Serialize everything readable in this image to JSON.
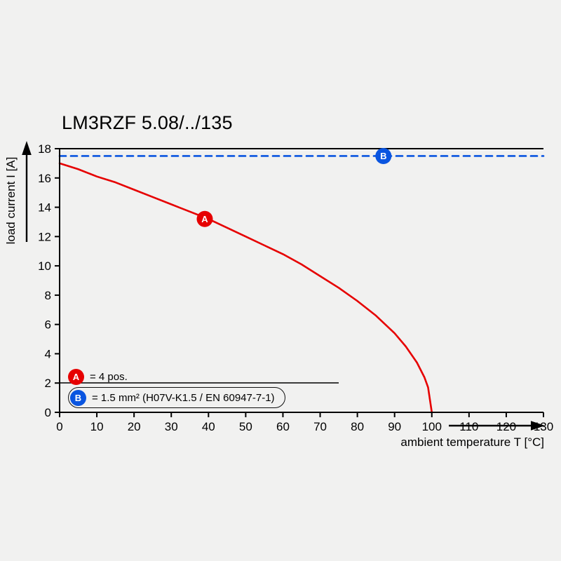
{
  "page": {
    "background": "#f1f1f0"
  },
  "chart": {
    "title": "LM3RZF 5.08/../135"
  },
  "chart_data": {
    "type": "line",
    "title": "LM3RZF 5.08/../135",
    "xlabel": "ambient temperature T [°C]",
    "ylabel": "load current I [A]",
    "xlim": [
      0,
      130
    ],
    "ylim": [
      0,
      18
    ],
    "xticks": [
      0,
      10,
      20,
      30,
      40,
      50,
      60,
      70,
      80,
      90,
      100,
      110,
      120,
      130
    ],
    "yticks": [
      0,
      2,
      4,
      6,
      8,
      10,
      12,
      14,
      16,
      18
    ],
    "grid": false,
    "legend_position": "bottom-left-inside",
    "axis_color": "#000000",
    "series": [
      {
        "name": "A",
        "label": "= 4 pos.",
        "color": "#e60000",
        "style": "solid",
        "x": [
          0,
          5,
          10,
          15,
          20,
          25,
          30,
          35,
          40,
          45,
          50,
          55,
          60,
          65,
          70,
          75,
          80,
          85,
          90,
          93,
          96,
          98,
          99,
          100
        ],
        "y": [
          17.0,
          16.6,
          16.1,
          15.7,
          15.2,
          14.7,
          14.2,
          13.7,
          13.2,
          12.6,
          12.0,
          11.4,
          10.8,
          10.1,
          9.3,
          8.5,
          7.6,
          6.6,
          5.4,
          4.5,
          3.4,
          2.4,
          1.7,
          0
        ],
        "marker": {
          "letter": "A",
          "x": 39,
          "y": 13.2
        }
      },
      {
        "name": "B",
        "label": "= 1.5 mm² (H07V-K1.5 / EN 60947-7-1)",
        "color": "#0a55e0",
        "style": "dashed",
        "x": [
          0,
          130
        ],
        "y": [
          17.5,
          17.5
        ],
        "marker": {
          "letter": "B",
          "x": 87,
          "y": 17.5
        }
      }
    ]
  }
}
